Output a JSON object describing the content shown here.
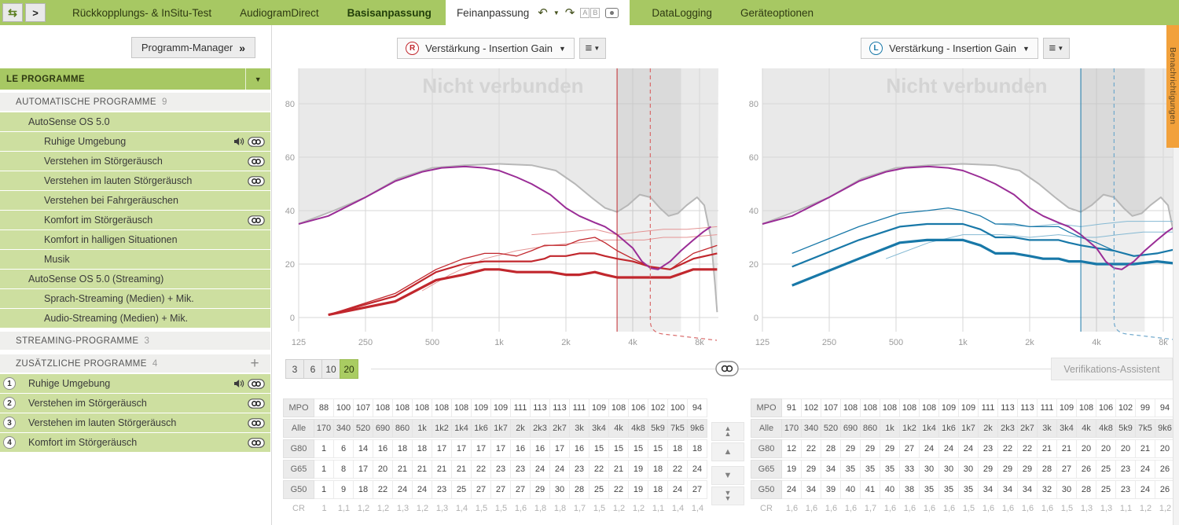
{
  "colors": {
    "topbar_green": "#a7c863",
    "item_green": "#cddfa0",
    "selected_green": "#a9cc62",
    "ear_right_red": "#c1272d",
    "ear_left_blue": "#1878a8",
    "target_purple": "#9a2d96",
    "limit_gray": "#b7b7b7",
    "notification_orange": "#f2a13b"
  },
  "topbar": {
    "tabs_left": [
      "Rückkopplungs- & InSitu-Test",
      "AudiogramDirect",
      "Basisanpassung"
    ],
    "active_tab": "Feinanpassung",
    "tabs_right": [
      "DataLogging",
      "Geräteoptionen"
    ]
  },
  "side_tab": {
    "label": "Benachrichtigungen"
  },
  "sidebar": {
    "manager_button": "Programm-Manager",
    "manager_chevrons": "»",
    "header": {
      "label": "LE PROGRAMME"
    },
    "sections": [
      {
        "title": "AUTOMATISCHE PROGRAMME",
        "count": "9",
        "plus": false,
        "items": [
          {
            "label": "AutoSense OS 5.0",
            "level": 1,
            "icons": []
          },
          {
            "label": "Ruhige Umgebung",
            "level": 2,
            "icons": [
              "speaker",
              "link"
            ]
          },
          {
            "label": "Verstehen im Störgeräusch",
            "level": 2,
            "icons": [
              "link"
            ]
          },
          {
            "label": "Verstehen im lauten Störgeräusch",
            "level": 2,
            "icons": [
              "link"
            ]
          },
          {
            "label": "Verstehen bei Fahrgeräuschen",
            "level": 2,
            "icons": []
          },
          {
            "label": "Komfort im Störgeräusch",
            "level": 2,
            "icons": [
              "link"
            ]
          },
          {
            "label": "Komfort in halligen Situationen",
            "level": 2,
            "icons": []
          },
          {
            "label": "Musik",
            "level": 2,
            "icons": []
          },
          {
            "label": "AutoSense OS 5.0 (Streaming)",
            "level": 1,
            "icons": []
          },
          {
            "label": "Sprach-Streaming (Medien) + Mik.",
            "level": 2,
            "icons": []
          },
          {
            "label": "Audio-Streaming (Medien) + Mik.",
            "level": 2,
            "icons": []
          }
        ]
      },
      {
        "title": "STREAMING-PROGRAMME",
        "count": "3",
        "plus": false,
        "items": []
      },
      {
        "title": "ZUSÄTZLICHE PROGRAMME",
        "count": "4",
        "plus": true,
        "items": [
          {
            "label": "Ruhige Umgebung",
            "num": "1",
            "icons": [
              "speaker",
              "link"
            ]
          },
          {
            "label": "Verstehen im Störgeräusch",
            "num": "2",
            "icons": [
              "link"
            ]
          },
          {
            "label": "Verstehen im lauten Störgeräusch",
            "num": "3",
            "icons": [
              "link"
            ]
          },
          {
            "label": "Komfort im Störgeräusch",
            "num": "4",
            "icons": [
              "link"
            ]
          }
        ]
      }
    ]
  },
  "freqs_hz": [
    170,
    340,
    520,
    690,
    860,
    1000,
    1200,
    1400,
    1600,
    1700,
    2000,
    2300,
    2700,
    3000,
    3400,
    4000,
    4800,
    5900,
    7500,
    9600
  ],
  "charts": [
    {
      "ear": "R",
      "table_key": "left",
      "dropdown_label": "Verstärkung - Insertion Gain",
      "watermark": "Nicht verbunden",
      "color": "#c1272d",
      "ear_color": "#c1272d",
      "target_color": "#e49494",
      "dash_color": "#d96a6a",
      "solid_line_hz": 3400,
      "dashed_line_hz": 4800,
      "band_end_hz": 6600,
      "yticks": [
        {
          "label": "80",
          "db": 80
        },
        {
          "label": "60",
          "db": 60
        },
        {
          "label": "40",
          "db": 40
        },
        {
          "label": "20",
          "db": 20
        },
        {
          "label": "0",
          "db": 0
        }
      ],
      "xticks": [
        {
          "label": "125",
          "hz": 125
        },
        {
          "label": "250",
          "hz": 250
        },
        {
          "label": "500",
          "hz": 500
        },
        {
          "label": "1k",
          "hz": 1000
        },
        {
          "label": "2k",
          "hz": 2000
        },
        {
          "label": "4k",
          "hz": 4000
        },
        {
          "label": "8k",
          "hz": 8000
        }
      ],
      "limit": [
        [
          125,
          35
        ],
        [
          180,
          40
        ],
        [
          250,
          45
        ],
        [
          350,
          52
        ],
        [
          500,
          56
        ],
        [
          700,
          57
        ],
        [
          1000,
          57.5
        ],
        [
          1400,
          57
        ],
        [
          1800,
          55
        ],
        [
          2200,
          50
        ],
        [
          2600,
          45
        ],
        [
          3000,
          41
        ],
        [
          3400,
          39.5
        ],
        [
          3800,
          42
        ],
        [
          4300,
          46
        ],
        [
          4800,
          45
        ],
        [
          5300,
          41
        ],
        [
          5800,
          38
        ],
        [
          6400,
          39
        ],
        [
          7000,
          42
        ],
        [
          7800,
          45
        ],
        [
          8400,
          42
        ],
        [
          9000,
          30
        ],
        [
          9400,
          12
        ],
        [
          9600,
          2
        ]
      ],
      "purple": [
        [
          125,
          35
        ],
        [
          170,
          38
        ],
        [
          250,
          45
        ],
        [
          340,
          51
        ],
        [
          450,
          54.5
        ],
        [
          550,
          56
        ],
        [
          700,
          56.5
        ],
        [
          860,
          56
        ],
        [
          1000,
          55
        ],
        [
          1200,
          52.5
        ],
        [
          1400,
          50
        ],
        [
          1700,
          46
        ],
        [
          2000,
          41
        ],
        [
          2300,
          38
        ],
        [
          2700,
          35.5
        ],
        [
          3000,
          34
        ],
        [
          3400,
          31
        ],
        [
          4000,
          26
        ],
        [
          4400,
          21
        ],
        [
          4800,
          18.5
        ],
        [
          5200,
          18
        ],
        [
          5900,
          21
        ],
        [
          6600,
          25
        ],
        [
          7500,
          29
        ],
        [
          8300,
          32
        ],
        [
          9000,
          34
        ]
      ],
      "targets": [
        [
          [
            450,
            10
          ],
          [
            600,
            16
          ],
          [
            860,
            22
          ],
          [
            1200,
            25
          ],
          [
            1700,
            27
          ],
          [
            2300,
            28
          ],
          [
            3000,
            29
          ],
          [
            3700,
            29
          ],
          [
            4500,
            29
          ],
          [
            5500,
            30
          ],
          [
            7000,
            30
          ],
          [
            9600,
            31
          ]
        ],
        [
          [
            1400,
            31
          ],
          [
            2000,
            32
          ],
          [
            2700,
            33
          ],
          [
            3400,
            31
          ],
          [
            4200,
            32
          ],
          [
            5500,
            33
          ],
          [
            7000,
            33
          ],
          [
            9600,
            34
          ]
        ]
      ]
    },
    {
      "ear": "L",
      "table_key": "right",
      "dropdown_label": "Verstärkung - Insertion Gain",
      "watermark": "Nicht verbunden",
      "color": "#1878a8",
      "ear_color": "#1878a8",
      "target_color": "#85b9d3",
      "dash_color": "#6fa8cc",
      "solid_line_hz": 3400,
      "dashed_line_hz": 4800,
      "band_end_hz": 6600,
      "yticks": [
        {
          "label": "80",
          "db": 80
        },
        {
          "label": "60",
          "db": 60
        },
        {
          "label": "40",
          "db": 40
        },
        {
          "label": "20",
          "db": 20
        },
        {
          "label": "0",
          "db": 0
        }
      ],
      "xticks": [
        {
          "label": "125",
          "hz": 125
        },
        {
          "label": "250",
          "hz": 250
        },
        {
          "label": "500",
          "hz": 500
        },
        {
          "label": "1k",
          "hz": 1000
        },
        {
          "label": "2k",
          "hz": 2000
        },
        {
          "label": "4k",
          "hz": 4000
        },
        {
          "label": "8k",
          "hz": 8000
        }
      ],
      "limit": [
        [
          125,
          35
        ],
        [
          180,
          40
        ],
        [
          250,
          45
        ],
        [
          350,
          52
        ],
        [
          500,
          56
        ],
        [
          700,
          57
        ],
        [
          1000,
          57.5
        ],
        [
          1400,
          57
        ],
        [
          1800,
          55
        ],
        [
          2200,
          50
        ],
        [
          2600,
          45
        ],
        [
          3000,
          41
        ],
        [
          3400,
          39.5
        ],
        [
          3800,
          42
        ],
        [
          4300,
          46
        ],
        [
          4800,
          45
        ],
        [
          5300,
          41
        ],
        [
          5800,
          38
        ],
        [
          6400,
          39
        ],
        [
          7000,
          42
        ],
        [
          7800,
          45
        ],
        [
          8400,
          42
        ],
        [
          9000,
          30
        ],
        [
          9400,
          12
        ],
        [
          9600,
          2
        ]
      ],
      "purple": [
        [
          125,
          35
        ],
        [
          170,
          38
        ],
        [
          250,
          45
        ],
        [
          340,
          51
        ],
        [
          450,
          54.5
        ],
        [
          550,
          56
        ],
        [
          700,
          56.5
        ],
        [
          860,
          56
        ],
        [
          1000,
          55
        ],
        [
          1200,
          52.5
        ],
        [
          1400,
          50
        ],
        [
          1700,
          46
        ],
        [
          2000,
          41
        ],
        [
          2300,
          38
        ],
        [
          2700,
          35.5
        ],
        [
          3000,
          34
        ],
        [
          3400,
          31
        ],
        [
          4000,
          26
        ],
        [
          4400,
          21
        ],
        [
          4800,
          18.5
        ],
        [
          5200,
          18
        ],
        [
          5900,
          21
        ],
        [
          6600,
          25
        ],
        [
          7500,
          29
        ],
        [
          8300,
          32
        ],
        [
          9000,
          34
        ]
      ],
      "targets": [
        [
          [
            450,
            22
          ],
          [
            700,
            28
          ],
          [
            1000,
            31
          ],
          [
            1500,
            31
          ],
          [
            2000,
            30
          ],
          [
            2700,
            31
          ],
          [
            3400,
            30
          ],
          [
            4000,
            30
          ],
          [
            5000,
            31
          ],
          [
            6500,
            32
          ],
          [
            9600,
            32
          ]
        ],
        [
          [
            1400,
            35
          ],
          [
            2000,
            34
          ],
          [
            2700,
            35
          ],
          [
            3400,
            34
          ],
          [
            4200,
            35
          ],
          [
            5500,
            36
          ],
          [
            9600,
            36
          ]
        ]
      ]
    }
  ],
  "gain_handles": {
    "options": [
      "3",
      "6",
      "10",
      "20"
    ],
    "selected": "20"
  },
  "verification_button_label": "Verifikations-Assistent",
  "tables": {
    "row_labels": {
      "mpo": "MPO",
      "alle": "Alle",
      "g80": "G80",
      "g65": "G65",
      "g50": "G50",
      "cr": "CR"
    },
    "freqs": [
      "170",
      "340",
      "520",
      "690",
      "860",
      "1k",
      "1k2",
      "1k4",
      "1k6",
      "1k7",
      "2k",
      "2k3",
      "2k7",
      "3k",
      "3k4",
      "4k",
      "4k8",
      "5k9",
      "7k5",
      "9k6"
    ],
    "left": {
      "mpo": [
        "88",
        "100",
        "107",
        "108",
        "108",
        "108",
        "108",
        "108",
        "109",
        "109",
        "111",
        "113",
        "113",
        "111",
        "109",
        "108",
        "106",
        "102",
        "100",
        "94"
      ],
      "g80": [
        "1",
        "6",
        "14",
        "16",
        "18",
        "18",
        "17",
        "17",
        "17",
        "17",
        "16",
        "16",
        "17",
        "16",
        "15",
        "15",
        "15",
        "15",
        "18",
        "18"
      ],
      "g65": [
        "1",
        "8",
        "17",
        "20",
        "21",
        "21",
        "21",
        "21",
        "22",
        "23",
        "23",
        "24",
        "24",
        "23",
        "22",
        "21",
        "19",
        "18",
        "22",
        "24"
      ],
      "g50": [
        "1",
        "9",
        "18",
        "22",
        "24",
        "24",
        "23",
        "25",
        "27",
        "27",
        "27",
        "29",
        "30",
        "28",
        "25",
        "22",
        "19",
        "18",
        "24",
        "27"
      ],
      "cr": [
        "1",
        "1,1",
        "1,2",
        "1,2",
        "1,3",
        "1,2",
        "1,3",
        "1,4",
        "1,5",
        "1,5",
        "1,6",
        "1,8",
        "1,8",
        "1,7",
        "1,5",
        "1,2",
        "1,2",
        "1,1",
        "1,4",
        "1,4"
      ]
    },
    "right": {
      "mpo": [
        "91",
        "102",
        "107",
        "108",
        "108",
        "108",
        "108",
        "108",
        "109",
        "109",
        "111",
        "113",
        "113",
        "111",
        "109",
        "108",
        "106",
        "102",
        "99",
        "94"
      ],
      "g80": [
        "12",
        "22",
        "28",
        "29",
        "29",
        "29",
        "27",
        "24",
        "24",
        "24",
        "23",
        "22",
        "22",
        "21",
        "21",
        "20",
        "20",
        "20",
        "21",
        "20"
      ],
      "g65": [
        "19",
        "29",
        "34",
        "35",
        "35",
        "35",
        "33",
        "30",
        "30",
        "30",
        "29",
        "29",
        "29",
        "28",
        "27",
        "26",
        "25",
        "23",
        "24",
        "26"
      ],
      "g50": [
        "24",
        "34",
        "39",
        "40",
        "41",
        "40",
        "38",
        "35",
        "35",
        "35",
        "34",
        "34",
        "34",
        "32",
        "30",
        "28",
        "25",
        "23",
        "24",
        "26"
      ],
      "cr": [
        "1,6",
        "1,6",
        "1,6",
        "1,6",
        "1,7",
        "1,6",
        "1,6",
        "1,6",
        "1,6",
        "1,5",
        "1,6",
        "1,6",
        "1,6",
        "1,6",
        "1,5",
        "1,3",
        "1,3",
        "1,1",
        "1,2",
        "1,2"
      ]
    }
  }
}
